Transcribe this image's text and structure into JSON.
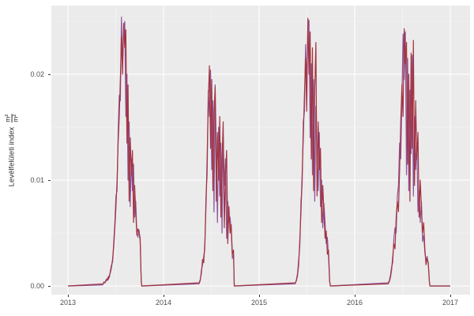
{
  "chart_data": {
    "type": "line",
    "title": "",
    "xlabel": "",
    "ylabel": "Levélfelületi index",
    "unit_numerator": "m²",
    "unit_denominator": "m²",
    "legend": "none",
    "grid": "on",
    "panel_background": "#EBEBEB",
    "colors": {
      "grid_major": "#FFFFFF",
      "grid_minor": "#F5F5F5",
      "axis_text": "#4D4D4D",
      "tick_mark": "#333333"
    },
    "xlim": [
      2012.826,
      2017.207
    ],
    "ylim": [
      -0.00082,
      0.02649
    ],
    "x_ticks": [
      {
        "label": "2013",
        "value": 2013
      },
      {
        "label": "2014",
        "value": 2014
      },
      {
        "label": "2015",
        "value": 2015
      },
      {
        "label": "2016",
        "value": 2016
      },
      {
        "label": "2017",
        "value": 2017
      }
    ],
    "x_minor_ticks": [
      2013.5,
      2014.5,
      2015.5,
      2016.5
    ],
    "y_ticks": [
      {
        "label": "0.00",
        "value": 0.0
      },
      {
        "label": "0.01",
        "value": 0.01
      },
      {
        "label": "0.02",
        "value": 0.02
      }
    ],
    "y_minor_ticks": [
      0.005,
      0.015,
      0.025
    ],
    "x_data_start": 2013.0,
    "x_data_end": 2017.0,
    "y_scale": 0.001,
    "series": [
      {
        "name": "lai-purple",
        "color": "#8D559C",
        "segments": [
          {
            "x0": 2013.364,
            "dx": 0.0115,
            "x_end": 2013.772,
            "y_milli": [
              0.1,
              0.4,
              0.3,
              0.6,
              0.5,
              0.9,
              0.8,
              1.5,
              2.0,
              2.3,
              4.2,
              6.0,
              8.5,
              9.0,
              14.5,
              18.0,
              17.5,
              25.4,
              21.0,
              24.0,
              25.0,
              16.0,
              20.0,
              10.0,
              15.5,
              7.5,
              12.0,
              9.0,
              11.5,
              6.5,
              8.0,
              5.0,
              4.6,
              5.3,
              4.2,
              0.4
            ]
          },
          {
            "x0": 2014.372,
            "dx": 0.012,
            "x_end": 2014.74,
            "y_milli": [
              0.2,
              0.5,
              1.5,
              2.0,
              2.8,
              3.5,
              8.5,
              10.5,
              18.5,
              16.0,
              20.4,
              11.0,
              17.5,
              7.0,
              19.0,
              12.5,
              6.0,
              15.0,
              8.5,
              13.5,
              5.0,
              14.0,
              9.5,
              12.0,
              4.5,
              8.0,
              6.0,
              6.5,
              5.2,
              2.6,
              3.0
            ]
          },
          {
            "x0": 2015.378,
            "dx": 0.012,
            "x_end": 2015.746,
            "y_milli": [
              0.2,
              0.6,
              1.2,
              2.5,
              3.8,
              8.0,
              9.5,
              15.5,
              16.5,
              22.8,
              19.0,
              24.5,
              25.1,
              14.0,
              21.0,
              10.5,
              19.5,
              8.0,
              17.0,
              12.5,
              9.0,
              14.5,
              7.5,
              10.0,
              5.5,
              7.8,
              6.0,
              4.0,
              4.6,
              2.8,
              0.4
            ]
          },
          {
            "x0": 2016.35,
            "dx": 0.012,
            "x_end": 2016.788,
            "y_milli": [
              0.3,
              0.5,
              1.0,
              1.8,
              2.2,
              4.5,
              5.5,
              5.0,
              8.5,
              9.5,
              13.5,
              12.0,
              17.5,
              23.8,
              19.5,
              24.0,
              10.5,
              21.5,
              9.0,
              18.5,
              12.5,
              21.8,
              8.5,
              16.0,
              11.0,
              13.5,
              7.0,
              9.0,
              6.0,
              8.0,
              4.2,
              4.8,
              3.2,
              2.4,
              2.8,
              2.0,
              0.3
            ]
          }
        ]
      },
      {
        "name": "lai-red",
        "color": "#A3333F",
        "segments": [
          {
            "x0": 2013.364,
            "dx": 0.0115,
            "x_end": 2013.772,
            "y_milli": [
              0.2,
              0.3,
              0.3,
              0.5,
              0.7,
              0.6,
              1.0,
              1.3,
              1.8,
              2.6,
              3.8,
              5.5,
              7.5,
              10.0,
              13.5,
              16.0,
              19.5,
              23.5,
              20.0,
              24.8,
              22.5,
              24.2,
              13.5,
              19.0,
              8.0,
              14.0,
              10.5,
              12.8,
              6.0,
              9.5,
              7.0,
              4.8,
              5.4,
              5.0,
              4.6,
              0.5
            ]
          },
          {
            "x0": 2014.372,
            "dx": 0.012,
            "x_end": 2014.74,
            "y_milli": [
              0.3,
              0.6,
              1.2,
              2.5,
              2.2,
              4.0,
              7.5,
              12.0,
              17.5,
              20.8,
              13.0,
              19.5,
              9.0,
              16.5,
              18.8,
              8.0,
              14.5,
              10.0,
              16.0,
              6.5,
              12.0,
              15.5,
              5.5,
              10.5,
              12.8,
              4.0,
              7.5,
              5.0,
              5.8,
              3.0,
              3.4
            ]
          },
          {
            "x0": 2015.378,
            "dx": 0.012,
            "x_end": 2015.746,
            "y_milli": [
              0.3,
              0.5,
              1.0,
              2.0,
              4.5,
              7.0,
              10.5,
              14.0,
              18.0,
              21.5,
              16.5,
              25.3,
              20.0,
              24.0,
              12.0,
              22.5,
              9.0,
              18.5,
              23.0,
              8.5,
              15.5,
              11.0,
              13.0,
              6.0,
              9.5,
              7.0,
              4.5,
              5.2,
              3.0,
              3.4,
              0.5
            ]
          },
          {
            "x0": 2016.35,
            "dx": 0.012,
            "x_end": 2016.788,
            "y_milli": [
              0.2,
              0.4,
              0.8,
              1.5,
              2.8,
              4.0,
              3.5,
              6.5,
              8.0,
              7.0,
              11.0,
              15.5,
              19.0,
              16.0,
              24.3,
              21.0,
              23.0,
              11.5,
              20.0,
              8.0,
              22.0,
              13.0,
              23.2,
              9.5,
              17.5,
              12.0,
              14.5,
              6.5,
              10.0,
              7.5,
              5.0,
              6.0,
              3.5,
              2.0,
              2.6,
              2.2,
              0.4
            ]
          }
        ]
      }
    ]
  }
}
